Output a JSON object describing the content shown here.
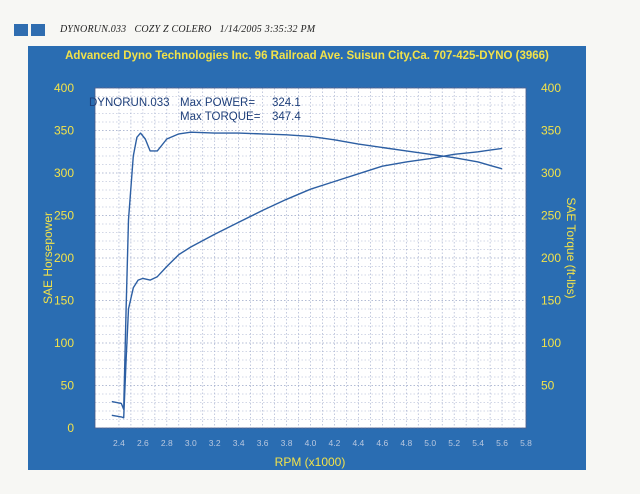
{
  "header": {
    "file_line": "DYNORUN.033   COZY Z COLERO   1/14/2005 3:35:32 PM",
    "shop_title": "Advanced Dyno Technologies Inc. 96 Railroad Ave. Suisun City,Ca. 707-425-DYNO (3966)"
  },
  "annotations": {
    "run_name": "DYNORUN.033",
    "max_power_label": "Max POWER=",
    "max_power_value": "324.1",
    "max_torque_label": "Max TORQUE=",
    "max_torque_value": "347.4"
  },
  "colors": {
    "panel": "#2a6db2",
    "plot_bg": "#ffffff",
    "grid": "#9aa6c8",
    "curve": "#2d5fa3",
    "label": "#f2e24a",
    "logo": "#2f6db0"
  },
  "chart_data": {
    "type": "line",
    "title": "Advanced Dyno Technologies Inc. 96 Railroad Ave. Suisun City,Ca. 707-425-DYNO (3966)",
    "xlabel": "RPM (x1000)",
    "ylabel": "SAE Horsepower",
    "y2label": "SAE Torque (ft-lbs)",
    "xlim": [
      2.2,
      5.8
    ],
    "ylim": [
      0,
      400
    ],
    "y2lim": [
      0,
      400
    ],
    "x_ticks": [
      "2.4",
      "2.6",
      "2.8",
      "3.0",
      "3.2",
      "3.4",
      "3.6",
      "3.8",
      "4.0",
      "4.2",
      "4.4",
      "4.6",
      "4.8",
      "5.0",
      "5.2",
      "5.4",
      "5.6",
      "5.8"
    ],
    "y_ticks": [
      "0",
      "50",
      "100",
      "150",
      "200",
      "250",
      "300",
      "350",
      "400"
    ],
    "y2_ticks": [
      "150",
      "200",
      "250",
      "300",
      "350",
      "400"
    ],
    "y2_ticks_major": [
      "50",
      "100"
    ],
    "grid": true,
    "series": [
      {
        "name": "Horsepower",
        "axis": "left",
        "x": [
          2.34,
          2.42,
          2.44,
          2.46,
          2.48,
          2.52,
          2.56,
          2.6,
          2.66,
          2.72,
          2.8,
          2.9,
          3.0,
          3.2,
          3.4,
          3.6,
          3.8,
          4.0,
          4.2,
          4.4,
          4.6,
          4.8,
          5.0,
          5.2,
          5.4,
          5.5,
          5.6
        ],
        "y": [
          15,
          13,
          12,
          80,
          140,
          165,
          174,
          176,
          174,
          178,
          190,
          204,
          213,
          228,
          242,
          256,
          269,
          281,
          290,
          299,
          308,
          313,
          317,
          322,
          325,
          327,
          329
        ]
      },
      {
        "name": "Torque",
        "axis": "right",
        "x": [
          2.34,
          2.42,
          2.44,
          2.46,
          2.48,
          2.52,
          2.55,
          2.58,
          2.62,
          2.66,
          2.72,
          2.8,
          2.9,
          3.0,
          3.2,
          3.4,
          3.6,
          3.8,
          4.0,
          4.2,
          4.4,
          4.6,
          4.8,
          5.0,
          5.2,
          5.4,
          5.5,
          5.6
        ],
        "y": [
          31,
          29,
          22,
          140,
          245,
          320,
          342,
          347,
          340,
          326,
          326,
          340,
          346,
          348,
          347,
          347,
          346,
          345,
          343,
          339,
          334,
          330,
          326,
          322,
          318,
          313,
          309,
          305
        ]
      }
    ]
  }
}
